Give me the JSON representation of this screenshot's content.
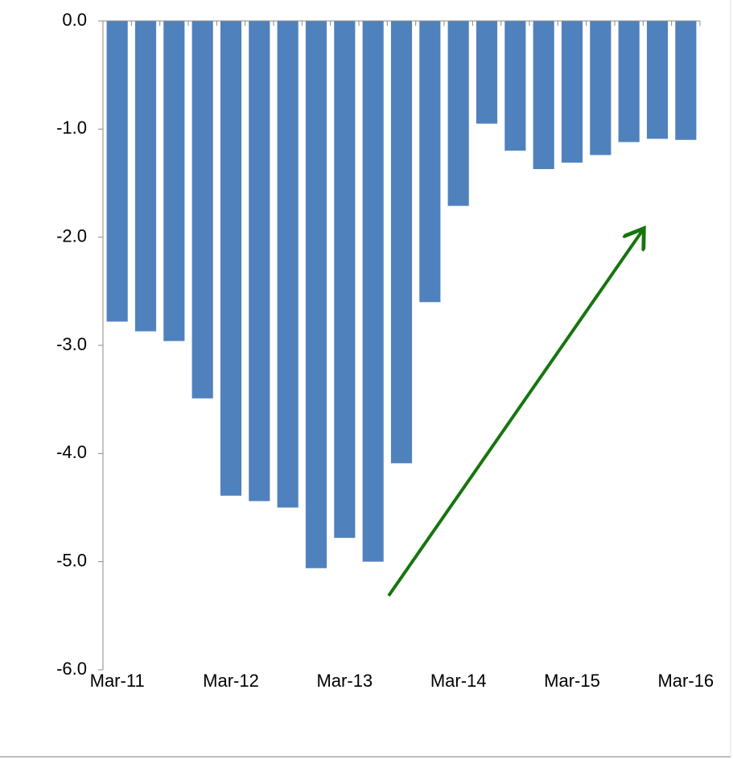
{
  "chart_data": {
    "type": "bar",
    "categories": [
      "Mar-11",
      null,
      null,
      null,
      "Mar-12",
      null,
      null,
      null,
      "Mar-13",
      null,
      null,
      null,
      "Mar-14",
      null,
      null,
      null,
      "Mar-15",
      null,
      null,
      null,
      "Mar-16"
    ],
    "values": [
      -2.78,
      -2.87,
      -2.96,
      -3.49,
      -4.39,
      -4.44,
      -4.5,
      -5.06,
      -4.78,
      -5.0,
      -4.09,
      -2.6,
      -1.71,
      -0.95,
      -1.2,
      -1.37,
      -1.31,
      -1.24,
      -1.12,
      -1.09,
      -1.1
    ],
    "color": "#4f81bd",
    "ylim": [
      -6,
      0
    ],
    "yticks": [
      {
        "value": -6,
        "label": "-6.0"
      },
      {
        "value": -5,
        "label": "-5.0"
      },
      {
        "value": -4,
        "label": "-4.0"
      },
      {
        "value": -3,
        "label": "-3.0"
      },
      {
        "value": -2,
        "label": "-2.0"
      },
      {
        "value": -1,
        "label": "-1.0"
      },
      {
        "value": 0,
        "label": "0.0"
      }
    ],
    "grid": false
  }
}
